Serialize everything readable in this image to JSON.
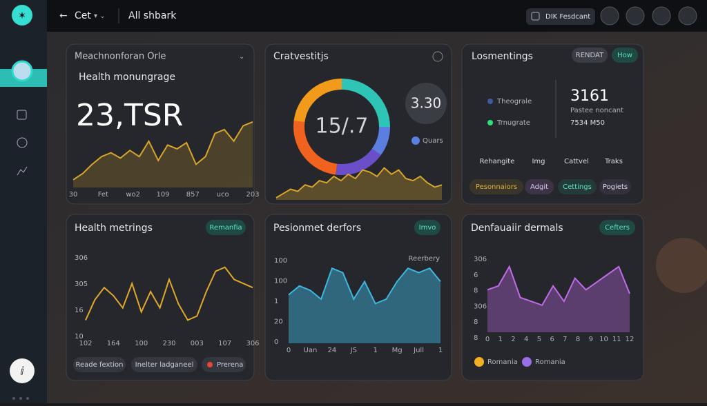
{
  "topbar": {
    "back": "Cet",
    "title": "All shbark",
    "button": "DIK Fesdcant"
  },
  "cards": [
    {
      "title": "Meachnonforan Orle",
      "subtitle": "Health monungrage",
      "big": "23,TSR",
      "chart": {
        "type": "area",
        "color": "#d9a52a",
        "ylim": [
          0,
          100
        ],
        "values": [
          10,
          18,
          30,
          40,
          45,
          38,
          48,
          40,
          60,
          35,
          55,
          50,
          58,
          30,
          40,
          70,
          75,
          60,
          80,
          85
        ],
        "x_labels": [
          "30",
          "Fet",
          "wo2",
          "109",
          "857",
          "uco",
          "203"
        ]
      }
    },
    {
      "title": "Cratvestitjs",
      "center": "15/.7",
      "badge": "3.30",
      "legend": "Quars",
      "donut": {
        "type": "pie",
        "values": [
          25,
          10,
          17,
          25,
          23
        ],
        "colors": [
          "#2ec4b6",
          "#5a7fe0",
          "#6a4fc8",
          "#f0621e",
          "#f29a1a"
        ]
      },
      "chart": {
        "type": "area",
        "color": "#d9a52a",
        "ylim": [
          0,
          100
        ],
        "values": [
          5,
          15,
          25,
          20,
          35,
          30,
          45,
          40,
          55,
          45,
          60,
          50,
          70,
          65,
          55,
          75,
          60,
          70,
          50,
          45,
          55,
          40,
          30,
          35
        ]
      }
    },
    {
      "title": "Losmentings",
      "tags": [
        "RENDAT",
        "How"
      ],
      "legend": [
        "Theograle",
        "Trnugrate"
      ],
      "stat": "3161",
      "stat_label": "Pastee noncant",
      "stat_sub": "7534 M50",
      "columns": [
        "Rehangite",
        "Img",
        "Cattvel",
        "Traks"
      ],
      "pills": [
        "Pesonnaiors",
        "Adgit",
        "Cettings",
        "Pogiets"
      ]
    },
    {
      "title": "Health metrings",
      "tag": "Remanfia",
      "y_labels": [
        "306",
        "305",
        "16",
        "10"
      ],
      "chart": {
        "type": "line",
        "color": "#e0a92a",
        "ylim": [
          0,
          100
        ],
        "values": [
          20,
          45,
          60,
          50,
          35,
          65,
          30,
          55,
          35,
          70,
          40,
          20,
          25,
          55,
          80,
          85,
          70,
          65,
          60
        ],
        "x_labels": [
          "102",
          "164",
          "100",
          "230",
          "003",
          "107",
          "306"
        ]
      },
      "pills": [
        "Reade fextion",
        "Inelter ladganeel",
        "Prerena"
      ]
    },
    {
      "title": "Pesionmet derfors",
      "tag": "Imvo",
      "note": "Reerbery",
      "y_labels": [
        "100",
        "100",
        "1",
        "20",
        "0"
      ],
      "chart": {
        "type": "area",
        "color": "#3fb6e0",
        "ylim": [
          0,
          100
        ],
        "values": [
          55,
          65,
          60,
          50,
          85,
          80,
          50,
          70,
          45,
          50,
          70,
          85,
          80,
          85,
          70
        ],
        "x_labels": [
          "0",
          "Uan",
          "24",
          "JS",
          "1",
          "Mg",
          "Jull",
          "1"
        ]
      }
    },
    {
      "title": "Denfauaiir dermals",
      "tag": "Cefters",
      "y_labels": [
        "306",
        "6",
        "8",
        "306",
        "8",
        "8"
      ],
      "chart": {
        "type": "area",
        "color": "#c06be8",
        "ylim": [
          0,
          100
        ],
        "values": [
          55,
          60,
          85,
          45,
          40,
          35,
          60,
          40,
          70,
          55,
          65,
          75,
          85,
          50
        ],
        "x_labels": [
          "0",
          "1",
          "2",
          "4",
          "5",
          "6",
          "7",
          "8",
          "9",
          "10",
          "11",
          "12"
        ]
      },
      "legend": [
        "Romania",
        "Romania"
      ]
    }
  ]
}
